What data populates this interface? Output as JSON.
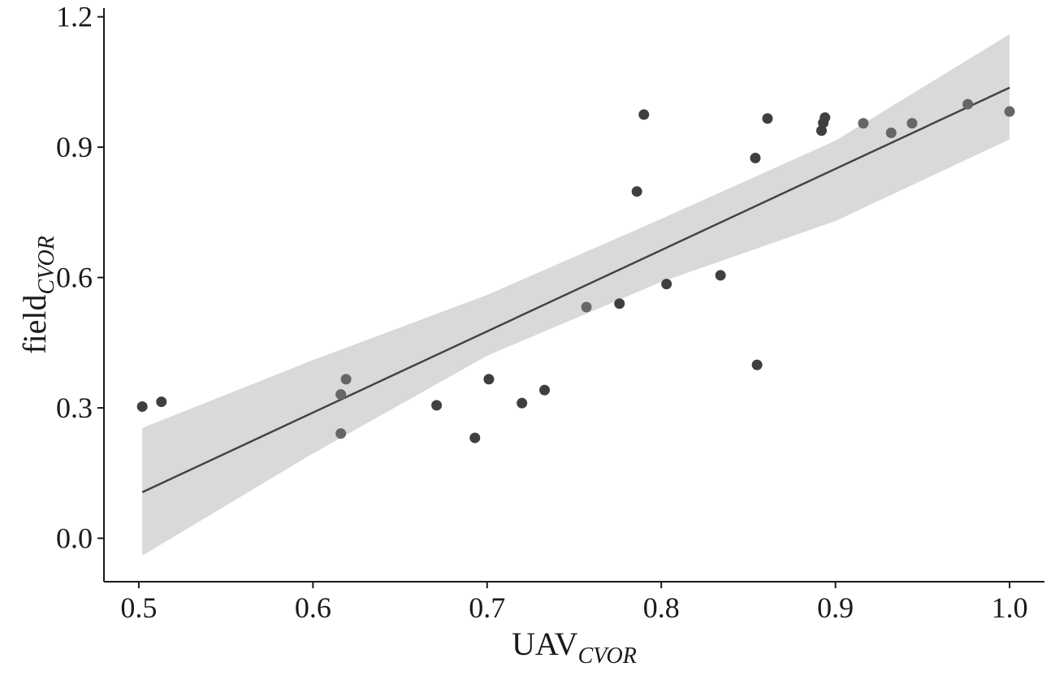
{
  "chart_data": {
    "type": "scatter",
    "xlabel": "UAV",
    "xlabel_subscript": "CVOR",
    "ylabel": "field",
    "ylabel_subscript": "CVOR",
    "xlim": [
      0.48,
      1.02
    ],
    "ylim": [
      -0.1,
      1.22
    ],
    "x_ticks": [
      "0.5",
      "0.6",
      "0.7",
      "0.8",
      "0.9",
      "1.0"
    ],
    "y_ticks": [
      "0.0",
      "0.3",
      "0.6",
      "0.9",
      "1.2"
    ],
    "grid": false,
    "legend": "none",
    "colors": {
      "point_dark": "#3f3f3f",
      "point_light": "#666666",
      "fit_line": "#444444",
      "ci_band": "#d9d9d9",
      "axis": "#1a1a1a"
    },
    "points": [
      {
        "x": 0.502,
        "y": 0.303,
        "shade": "dark"
      },
      {
        "x": 0.513,
        "y": 0.314,
        "shade": "dark"
      },
      {
        "x": 0.616,
        "y": 0.331,
        "shade": "light"
      },
      {
        "x": 0.619,
        "y": 0.366,
        "shade": "light"
      },
      {
        "x": 0.616,
        "y": 0.241,
        "shade": "light"
      },
      {
        "x": 0.671,
        "y": 0.306,
        "shade": "dark"
      },
      {
        "x": 0.693,
        "y": 0.231,
        "shade": "dark"
      },
      {
        "x": 0.701,
        "y": 0.366,
        "shade": "dark"
      },
      {
        "x": 0.72,
        "y": 0.311,
        "shade": "dark"
      },
      {
        "x": 0.733,
        "y": 0.341,
        "shade": "dark"
      },
      {
        "x": 0.757,
        "y": 0.532,
        "shade": "light"
      },
      {
        "x": 0.776,
        "y": 0.54,
        "shade": "dark"
      },
      {
        "x": 0.786,
        "y": 0.798,
        "shade": "dark"
      },
      {
        "x": 0.79,
        "y": 0.975,
        "shade": "dark"
      },
      {
        "x": 0.803,
        "y": 0.585,
        "shade": "dark"
      },
      {
        "x": 0.834,
        "y": 0.605,
        "shade": "dark"
      },
      {
        "x": 0.854,
        "y": 0.875,
        "shade": "dark"
      },
      {
        "x": 0.855,
        "y": 0.399,
        "shade": "dark"
      },
      {
        "x": 0.861,
        "y": 0.966,
        "shade": "dark"
      },
      {
        "x": 0.892,
        "y": 0.938,
        "shade": "dark"
      },
      {
        "x": 0.893,
        "y": 0.956,
        "shade": "dark"
      },
      {
        "x": 0.894,
        "y": 0.968,
        "shade": "dark"
      },
      {
        "x": 0.916,
        "y": 0.955,
        "shade": "light"
      },
      {
        "x": 0.932,
        "y": 0.933,
        "shade": "light"
      },
      {
        "x": 0.944,
        "y": 0.955,
        "shade": "light"
      },
      {
        "x": 0.976,
        "y": 0.999,
        "shade": "light"
      },
      {
        "x": 1.0,
        "y": 0.982,
        "shade": "light"
      }
    ],
    "fit_line": {
      "x": [
        0.502,
        1.0
      ],
      "y": [
        0.106,
        1.037
      ]
    },
    "confidence_band": {
      "x": [
        0.502,
        0.6,
        0.7,
        0.8,
        0.9,
        1.0
      ],
      "lower": [
        -0.04,
        0.195,
        0.42,
        0.59,
        0.73,
        0.918
      ],
      "upper": [
        0.254,
        0.41,
        0.56,
        0.735,
        0.915,
        1.16
      ]
    }
  }
}
